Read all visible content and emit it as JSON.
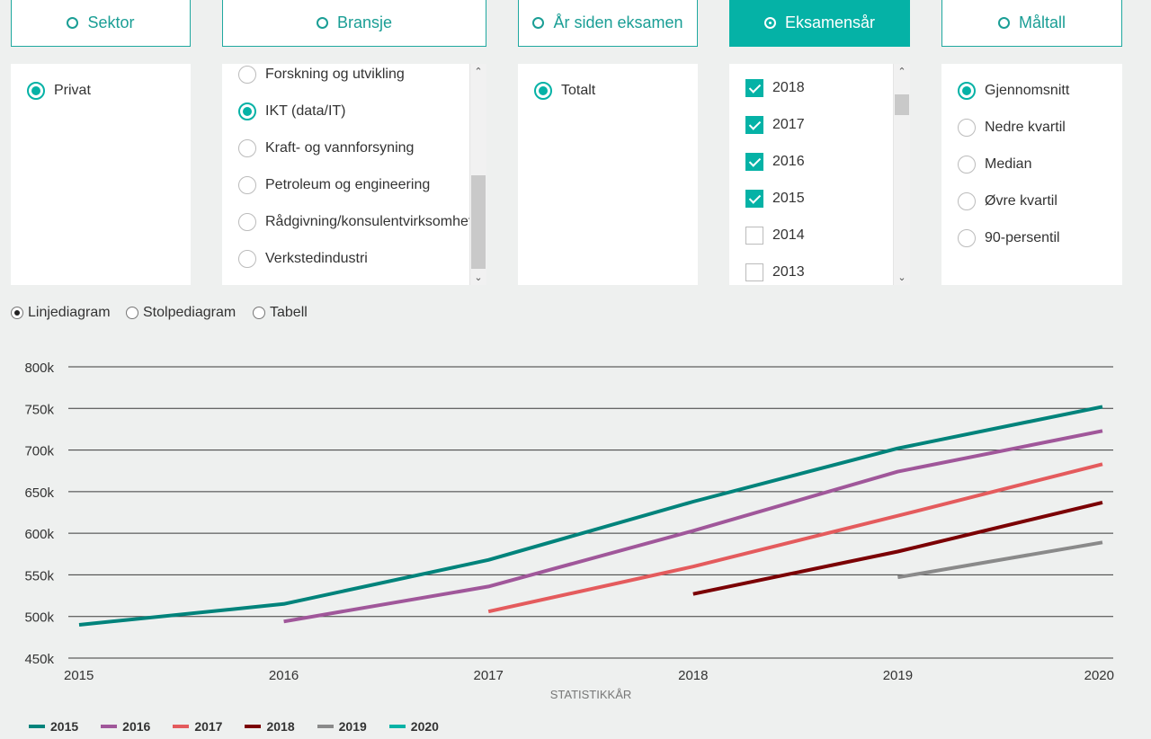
{
  "tabs": [
    {
      "label": "Sektor",
      "active": false
    },
    {
      "label": "Bransje",
      "active": false
    },
    {
      "label": "År siden eksamen",
      "active": false
    },
    {
      "label": "Eksamensår",
      "active": true
    },
    {
      "label": "Måltall",
      "active": false
    }
  ],
  "sektor": {
    "options": [
      {
        "label": "Privat",
        "selected": true
      }
    ]
  },
  "bransje": {
    "options": [
      {
        "label": "Forskning og utvikling",
        "selected": false
      },
      {
        "label": "IKT (data/IT)",
        "selected": true
      },
      {
        "label": "Kraft- og vannforsyning",
        "selected": false
      },
      {
        "label": "Petroleum og engineering",
        "selected": false
      },
      {
        "label": "Rådgivning/konsulentvirksomhet",
        "selected": false
      },
      {
        "label": "Verkstedindustri",
        "selected": false
      }
    ]
  },
  "aar_siden": {
    "options": [
      {
        "label": "Totalt",
        "selected": true
      }
    ]
  },
  "eksamensaar": {
    "options": [
      {
        "label": "2018",
        "checked": true
      },
      {
        "label": "2017",
        "checked": true
      },
      {
        "label": "2016",
        "checked": true
      },
      {
        "label": "2015",
        "checked": true
      },
      {
        "label": "2014",
        "checked": false
      },
      {
        "label": "2013",
        "checked": false
      }
    ]
  },
  "maltall": {
    "options": [
      {
        "label": "Gjennomsnitt",
        "selected": true
      },
      {
        "label": "Nedre kvartil",
        "selected": false
      },
      {
        "label": "Median",
        "selected": false
      },
      {
        "label": "Øvre kvartil",
        "selected": false
      },
      {
        "label": "90-persentil",
        "selected": false
      }
    ]
  },
  "view_types": [
    {
      "label": "Linjediagram",
      "selected": true
    },
    {
      "label": "Stolpediagram",
      "selected": false
    },
    {
      "label": "Tabell",
      "selected": false
    }
  ],
  "chart_data": {
    "type": "line",
    "xlabel": "STATISTIKKÅR",
    "ylabel": "",
    "x": [
      2015,
      2016,
      2017,
      2018,
      2019,
      2020
    ],
    "ylim": [
      450000,
      800000
    ],
    "yticks": [
      "450k",
      "500k",
      "550k",
      "600k",
      "650k",
      "700k",
      "750k",
      "800k"
    ],
    "grid": true,
    "legend_position": "bottom-left",
    "series": [
      {
        "name": "2015",
        "color": "#00837b",
        "points": [
          [
            2015,
            490000
          ],
          [
            2016,
            515000
          ],
          [
            2017,
            568000
          ],
          [
            2018,
            638000
          ],
          [
            2019,
            702000
          ],
          [
            2020,
            752000
          ]
        ]
      },
      {
        "name": "2016",
        "color": "#a0579a",
        "points": [
          [
            2016,
            494000
          ],
          [
            2017,
            536000
          ],
          [
            2018,
            603000
          ],
          [
            2019,
            674000
          ],
          [
            2020,
            723000
          ]
        ]
      },
      {
        "name": "2017",
        "color": "#e45b5d",
        "points": [
          [
            2017,
            506000
          ],
          [
            2018,
            560000
          ],
          [
            2019,
            621000
          ],
          [
            2020,
            683000
          ]
        ]
      },
      {
        "name": "2018",
        "color": "#7b0004",
        "points": [
          [
            2018,
            527000
          ],
          [
            2019,
            578000
          ],
          [
            2020,
            637000
          ]
        ]
      },
      {
        "name": "2019",
        "color": "#8a8a8a",
        "points": [
          [
            2019,
            547000
          ],
          [
            2020,
            589000
          ]
        ]
      },
      {
        "name": "2020",
        "color": "#05b2a6",
        "points": []
      }
    ]
  }
}
